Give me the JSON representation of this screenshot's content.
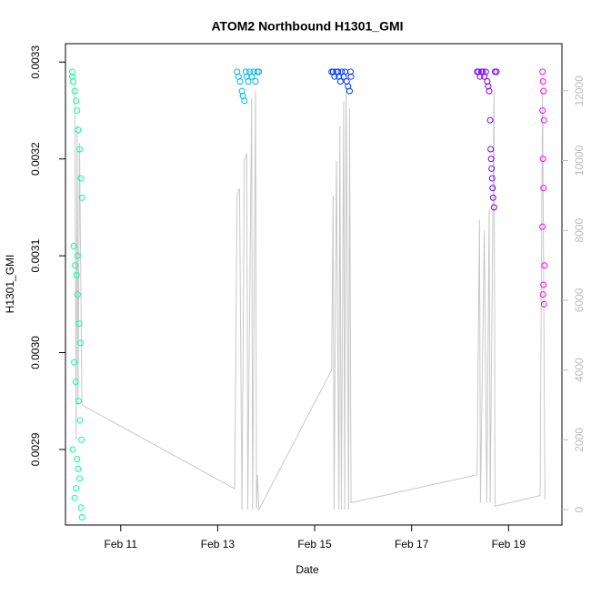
{
  "chart_data": {
    "type": "scatter",
    "title": "ATOM2 Northbound H1301_GMI",
    "xlabel": "Date",
    "ylabel": "H1301_GMI",
    "xlim": [
      9.86,
      20.1
    ],
    "xticks": [
      {
        "value": 11,
        "label": "Feb 11"
      },
      {
        "value": 13,
        "label": "Feb 13"
      },
      {
        "value": 15,
        "label": "Feb 15"
      },
      {
        "value": 17,
        "label": "Feb 17"
      },
      {
        "value": 19,
        "label": "Feb 19"
      }
    ],
    "ylim": [
      0.002822,
      0.003319
    ],
    "yticks": [
      0.0029,
      {
        "value": 0.003,
        "label": "0.0030"
      },
      0.0031,
      0.0032,
      0.0033
    ],
    "y2lim": [
      -440,
      13350
    ],
    "y2ticks": [
      0,
      2000,
      4000,
      6000,
      8000,
      10000,
      12000
    ],
    "series": [
      {
        "name": "H1301_GMI",
        "color": "#00FFA0",
        "x": [
          10.0,
          10.0,
          10.02,
          10.05,
          10.08,
          10.1,
          10.12,
          10.15,
          10.18,
          10.2,
          10.03,
          10.06,
          10.09,
          10.11,
          10.14,
          10.17,
          10.04,
          10.07,
          10.13,
          10.16,
          10.19,
          10.01,
          10.1,
          10.12,
          10.15,
          10.08,
          10.05,
          10.18,
          10.2,
          10.11
        ],
        "values": [
          0.00329,
          0.003285,
          0.00328,
          0.00327,
          0.00326,
          0.00325,
          0.00323,
          0.00321,
          0.00318,
          0.00316,
          0.00311,
          0.00309,
          0.00308,
          0.00306,
          0.00303,
          0.00301,
          0.00299,
          0.00297,
          0.00295,
          0.00293,
          0.00291,
          0.0029,
          0.00289,
          0.00288,
          0.00287,
          0.00286,
          0.00285,
          0.00284,
          0.00283,
          0.0031
        ]
      },
      {
        "name": "H1301_GMI",
        "color": "#00B4F0",
        "x": [
          13.4,
          13.43,
          13.46,
          13.5,
          13.52,
          13.55,
          13.58,
          13.6,
          13.63,
          13.66,
          13.7,
          13.74,
          13.78,
          13.82,
          13.85
        ],
        "values": [
          0.00329,
          0.003285,
          0.00328,
          0.00327,
          0.003265,
          0.00326,
          0.00329,
          0.003285,
          0.00328,
          0.00329,
          0.003285,
          0.00329,
          0.00328,
          0.00329,
          0.00329
        ]
      },
      {
        "name": "H1301_GMI",
        "color": "#0038FF",
        "x": [
          15.35,
          15.38,
          15.41,
          15.45,
          15.48,
          15.5,
          15.53,
          15.56,
          15.6,
          15.63,
          15.66,
          15.69,
          15.72,
          15.74,
          15.75
        ],
        "values": [
          0.00329,
          0.00329,
          0.003285,
          0.00329,
          0.00329,
          0.003285,
          0.00328,
          0.00329,
          0.003285,
          0.00329,
          0.00328,
          0.003275,
          0.00327,
          0.00329,
          0.003285
        ]
      },
      {
        "name": "H1301_GMI",
        "color": "#7A00FF",
        "x": [
          18.35,
          18.38,
          18.41,
          18.44,
          18.47,
          18.5,
          18.53,
          18.56,
          18.58,
          18.6,
          18.62,
          18.63,
          18.64,
          18.65,
          18.66,
          18.67,
          18.68,
          18.7,
          18.72,
          18.75
        ],
        "values": [
          0.00329,
          0.00329,
          0.003285,
          0.00329,
          0.00329,
          0.003285,
          0.00329,
          0.00328,
          0.003275,
          0.00327,
          0.00324,
          0.00321,
          0.0032,
          0.00319,
          0.00318,
          0.00317,
          0.00316,
          0.00315,
          0.00329,
          0.00329
        ]
      },
      {
        "name": "H1301_GMI",
        "color": "#FF00FF",
        "x": [
          19.7,
          19.71,
          19.72,
          19.7,
          19.73,
          19.71,
          19.72,
          19.7,
          19.74,
          19.72,
          19.71,
          19.73
        ],
        "values": [
          0.00329,
          0.00328,
          0.00327,
          0.00325,
          0.00324,
          0.0032,
          0.00317,
          0.00313,
          0.00309,
          0.00307,
          0.00306,
          0.00305
        ]
      },
      {
        "name": "H1301_GMI",
        "color": "#c8c8c8",
        "axis": "y2",
        "x": [
          10.05,
          10.08,
          10.1,
          10.12,
          10.15,
          10.2,
          13.35,
          13.4,
          13.45,
          13.5,
          13.55,
          13.6,
          13.62,
          13.7,
          13.72,
          13.78,
          13.8,
          13.82,
          13.85,
          15.35,
          15.38,
          15.4,
          15.45,
          15.5,
          15.52,
          15.55,
          15.6,
          15.62,
          15.65,
          15.7,
          15.72,
          15.75,
          18.35,
          18.4,
          18.42,
          18.5,
          18.55,
          18.6,
          18.62,
          18.7,
          18.72,
          19.65,
          19.7,
          19.75
        ],
        "values": [
          12200,
          2000,
          11000,
          3000,
          10500,
          3000,
          600,
          9000,
          9200,
          0,
          10000,
          10200,
          0,
          11800,
          0,
          12000,
          0,
          1000,
          0,
          4000,
          9000,
          0,
          10000,
          0,
          11000,
          0,
          11700,
          0,
          12100,
          0,
          11500,
          200,
          1000,
          8300,
          200,
          8000,
          200,
          8600,
          200,
          12000,
          100,
          400,
          12000,
          300
        ]
      }
    ]
  }
}
